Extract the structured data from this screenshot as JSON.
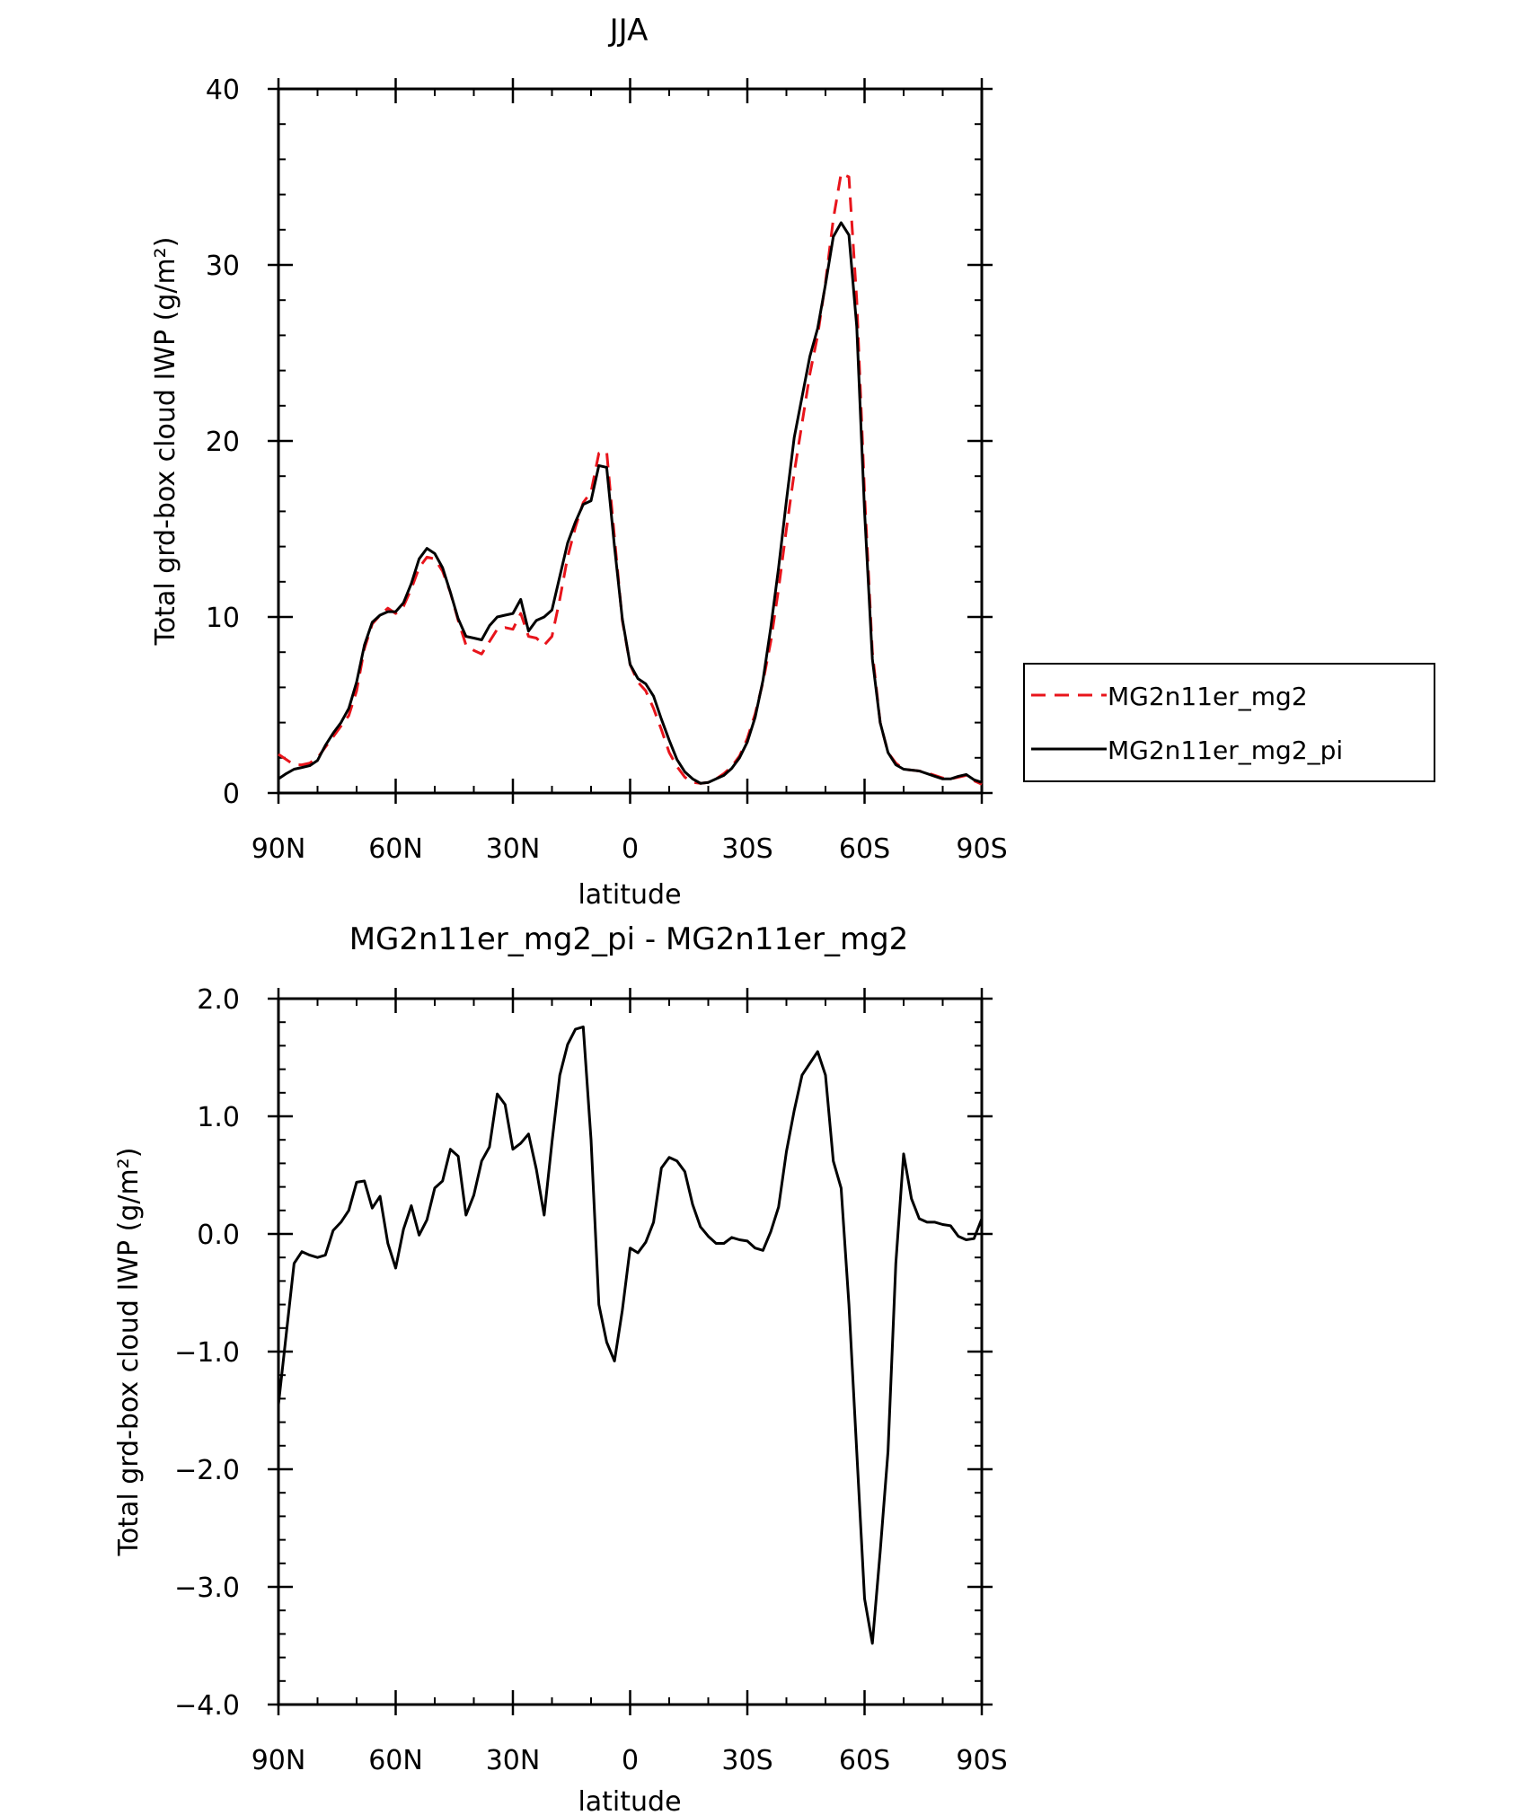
{
  "chart_data": [
    {
      "type": "line",
      "title": "JJA",
      "xlabel": "latitude",
      "ylabel": "Total grd-box cloud IWP (g/m²)",
      "xlim": [
        90,
        -90
      ],
      "ylim": [
        0,
        40
      ],
      "x_ticks": [
        90,
        60,
        30,
        0,
        -30,
        -60,
        -90
      ],
      "x_tick_labels": [
        "90N",
        "60N",
        "30N",
        "0",
        "30S",
        "60S",
        "90S"
      ],
      "y_ticks": [
        0,
        10,
        20,
        30,
        40
      ],
      "y_tick_labels": [
        "0",
        "10",
        "20",
        "30",
        "40"
      ],
      "legend_position": "right",
      "series": [
        {
          "name": "MG2n11er_mg2",
          "color": "#e8141b",
          "dash": "dashed",
          "x": [
            90,
            88,
            86,
            84,
            82,
            80,
            78,
            76,
            74,
            72,
            70,
            68,
            66,
            64,
            62,
            60,
            58,
            56,
            54,
            52,
            50,
            48,
            46,
            44,
            42,
            40,
            38,
            36,
            34,
            32,
            30,
            28,
            26,
            24,
            22,
            20,
            18,
            16,
            14,
            12,
            10,
            8,
            6,
            4,
            2,
            0,
            -2,
            -4,
            -6,
            -8,
            -10,
            -12,
            -14,
            -16,
            -18,
            -20,
            -22,
            -24,
            -26,
            -28,
            -30,
            -32,
            -34,
            -36,
            -38,
            -40,
            -42,
            -44,
            -46,
            -48,
            -50,
            -52,
            -54,
            -56,
            -58,
            -60,
            -62,
            -64,
            -66,
            -68,
            -70,
            -72,
            -74,
            -76,
            -78,
            -80,
            -82,
            -84,
            -86,
            -88,
            -90
          ],
          "y": [
            2.2,
            1.9,
            1.6,
            1.6,
            1.7,
            2.0,
            2.6,
            3.2,
            3.8,
            4.4,
            5.8,
            8.2,
            9.6,
            10.1,
            10.5,
            10.2,
            10.6,
            11.6,
            12.8,
            13.4,
            13.3,
            12.6,
            11.4,
            9.8,
            8.4,
            8.1,
            7.9,
            8.6,
            9.3,
            9.4,
            9.3,
            10.2,
            8.9,
            8.8,
            8.4,
            8.9,
            11.0,
            13.4,
            15.1,
            16.5,
            17.1,
            19.3,
            19.4,
            14.5,
            9.8,
            7.3,
            6.3,
            5.8,
            4.8,
            3.6,
            2.3,
            1.5,
            0.9,
            0.6,
            0.55,
            0.6,
            0.8,
            1.1,
            1.5,
            2.1,
            3.1,
            4.5,
            6.3,
            8.6,
            11.6,
            15.0,
            18.2,
            21.0,
            23.8,
            26.0,
            29.0,
            32.6,
            35.2,
            35.0,
            28.0,
            17.0,
            8.0,
            4.0,
            2.3,
            1.7,
            1.35,
            1.3,
            1.25,
            1.15,
            1.0,
            0.85,
            0.8,
            0.9,
            1.0,
            0.7,
            0.5
          ]
        },
        {
          "name": "MG2n11er_mg2_pi",
          "color": "#000000",
          "dash": "solid",
          "x": [
            90,
            88,
            86,
            84,
            82,
            80,
            78,
            76,
            74,
            72,
            70,
            68,
            66,
            64,
            62,
            60,
            58,
            56,
            54,
            52,
            50,
            48,
            46,
            44,
            42,
            40,
            38,
            36,
            34,
            32,
            30,
            28,
            26,
            24,
            22,
            20,
            18,
            16,
            14,
            12,
            10,
            8,
            6,
            4,
            2,
            0,
            -2,
            -4,
            -6,
            -8,
            -10,
            -12,
            -14,
            -16,
            -18,
            -20,
            -22,
            -24,
            -26,
            -28,
            -30,
            -32,
            -34,
            -36,
            -38,
            -40,
            -42,
            -44,
            -46,
            -48,
            -50,
            -52,
            -54,
            -56,
            -58,
            -60,
            -62,
            -64,
            -66,
            -68,
            -70,
            -72,
            -74,
            -76,
            -78,
            -80,
            -82,
            -84,
            -86,
            -88,
            -90
          ],
          "y": [
            0.8,
            1.1,
            1.35,
            1.45,
            1.55,
            1.85,
            2.7,
            3.4,
            4.0,
            4.8,
            6.3,
            8.4,
            9.7,
            10.1,
            10.3,
            10.3,
            10.8,
            11.9,
            13.3,
            13.9,
            13.6,
            12.8,
            11.4,
            9.9,
            8.9,
            8.8,
            8.7,
            9.5,
            10.0,
            10.1,
            10.2,
            11.0,
            9.2,
            9.8,
            10.0,
            10.4,
            12.3,
            14.2,
            15.4,
            16.4,
            16.6,
            18.6,
            18.5,
            14.0,
            9.9,
            7.3,
            6.5,
            6.2,
            5.5,
            4.2,
            3.0,
            1.9,
            1.2,
            0.8,
            0.55,
            0.6,
            0.8,
            1.0,
            1.4,
            2.0,
            2.9,
            4.3,
            6.4,
            9.4,
            12.8,
            16.6,
            20.2,
            22.5,
            24.8,
            26.4,
            28.9,
            31.6,
            32.4,
            31.7,
            26.5,
            16.0,
            7.6,
            4.0,
            2.3,
            1.6,
            1.35,
            1.3,
            1.25,
            1.1,
            0.95,
            0.8,
            0.8,
            0.95,
            1.05,
            0.75,
            0.6
          ]
        }
      ]
    },
    {
      "type": "line",
      "title": "MG2n11er_mg2_pi - MG2n11er_mg2",
      "xlabel": "latitude",
      "ylabel": "Total grd-box cloud IWP (g/m²)",
      "xlim": [
        90,
        -90
      ],
      "ylim": [
        -4.0,
        2.0
      ],
      "x_ticks": [
        90,
        60,
        30,
        0,
        -30,
        -60,
        -90
      ],
      "x_tick_labels": [
        "90N",
        "60N",
        "30N",
        "0",
        "30S",
        "60S",
        "90S"
      ],
      "y_ticks": [
        2.0,
        1.0,
        0.0,
        -1.0,
        -2.0,
        -3.0,
        -4.0
      ],
      "y_tick_labels": [
        "2.0",
        "1.0",
        "0.0",
        "−1.0",
        "−2.0",
        "−3.0",
        "−4.0"
      ],
      "series": [
        {
          "color": "#000000",
          "dash": "solid",
          "x": [
            90,
            88,
            86,
            84,
            82,
            80,
            78,
            76,
            74,
            72,
            70,
            68,
            66,
            64,
            62,
            60,
            58,
            56,
            54,
            52,
            50,
            48,
            46,
            44,
            42,
            40,
            38,
            36,
            34,
            32,
            30,
            28,
            26,
            24,
            22,
            20,
            18,
            16,
            14,
            12,
            10,
            8,
            6,
            4,
            2,
            0,
            -2,
            -4,
            -6,
            -8,
            -10,
            -12,
            -14,
            -16,
            -18,
            -20,
            -22,
            -24,
            -26,
            -28,
            -30,
            -32,
            -34,
            -36,
            -38,
            -40,
            -42,
            -44,
            -46,
            -48,
            -50,
            -52,
            -54,
            -56,
            -58,
            -60,
            -62,
            -64,
            -66,
            -68,
            -70,
            -72,
            -74,
            -76,
            -78,
            -80,
            -82,
            -84,
            -86,
            -88,
            -90
          ],
          "y": [
            -1.45,
            -0.85,
            -0.25,
            -0.15,
            -0.18,
            -0.2,
            -0.18,
            0.03,
            0.1,
            0.2,
            0.44,
            0.45,
            0.22,
            0.32,
            -0.08,
            -0.29,
            0.04,
            0.24,
            -0.01,
            0.12,
            0.39,
            0.45,
            0.72,
            0.66,
            0.16,
            0.33,
            0.62,
            0.74,
            1.19,
            1.1,
            0.72,
            0.77,
            0.85,
            0.55,
            0.16,
            0.78,
            1.35,
            1.61,
            1.74,
            1.76,
            0.8,
            -0.6,
            -0.92,
            -1.08,
            -0.65,
            -0.12,
            -0.16,
            -0.07,
            0.1,
            0.56,
            0.65,
            0.62,
            0.53,
            0.25,
            0.06,
            -0.02,
            -0.08,
            -0.08,
            -0.03,
            -0.05,
            -0.06,
            -0.12,
            -0.14,
            0.02,
            0.23,
            0.7,
            1.05,
            1.35,
            1.45,
            1.55,
            1.35,
            0.62,
            0.39,
            -0.6,
            -1.85,
            -3.1,
            -3.48,
            -2.7,
            -1.85,
            -0.25,
            0.68,
            0.3,
            0.13,
            0.1,
            0.1,
            0.08,
            0.07,
            -0.02,
            -0.05,
            -0.04,
            0.13
          ]
        }
      ]
    }
  ]
}
